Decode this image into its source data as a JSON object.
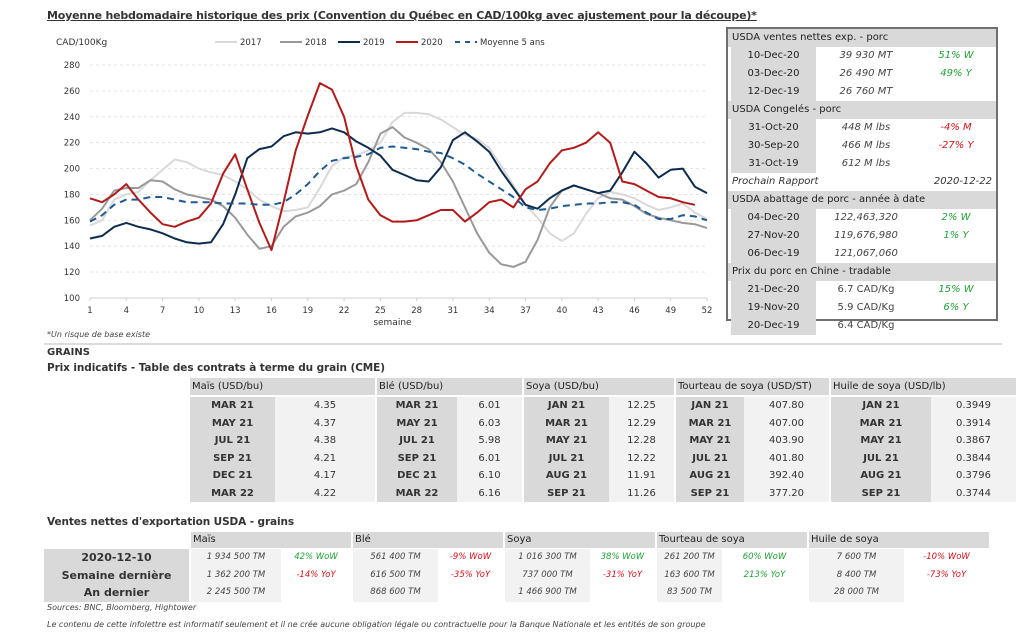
{
  "title": "Moyenne hebdomadaire historique des prix (Convention du Québec en CAD/100kg avec ajustement pour la découpe)*",
  "footnote": "*Un risque de base existe",
  "chart_data": {
    "type": "line",
    "title": "Moyenne hebdomadaire historique des prix (Convention du Québec en CAD/100kg avec ajustement pour la découpe)*",
    "ylabel": "CAD/100Kg",
    "xlabel": "semaine",
    "ylim": [
      100,
      280
    ],
    "yticks": [
      100,
      120,
      140,
      160,
      180,
      200,
      220,
      240,
      260,
      280
    ],
    "xlim": [
      1,
      52
    ],
    "xticks": [
      1,
      4,
      7,
      10,
      13,
      16,
      19,
      22,
      25,
      28,
      31,
      34,
      37,
      40,
      43,
      46,
      49,
      52
    ],
    "grid": true,
    "legend_position": "top",
    "x": [
      1,
      2,
      3,
      4,
      5,
      6,
      7,
      8,
      9,
      10,
      11,
      12,
      13,
      14,
      15,
      16,
      17,
      18,
      19,
      20,
      21,
      22,
      23,
      24,
      25,
      26,
      27,
      28,
      29,
      30,
      31,
      32,
      33,
      34,
      35,
      36,
      37,
      38,
      39,
      40,
      41,
      42,
      43,
      44,
      45,
      46,
      47,
      48,
      49,
      50,
      51,
      52
    ],
    "series": [
      {
        "name": "2017",
        "color": "#d9d9d9",
        "style": "solid",
        "values": [
          156,
          160,
          176,
          180,
          182,
          191,
          199,
          207,
          205,
          200,
          197,
          195,
          190,
          184,
          176,
          171,
          167,
          168,
          170,
          185,
          202,
          209,
          210,
          214,
          220,
          236,
          243,
          243,
          242,
          238,
          232,
          226,
          223,
          216,
          202,
          187,
          172,
          162,
          150,
          144,
          150,
          165,
          177,
          182,
          180,
          177,
          172,
          168,
          170,
          173,
          166,
          161
        ]
      },
      {
        "name": "2018",
        "color": "#999999",
        "style": "solid",
        "values": [
          160,
          169,
          183,
          185,
          185,
          191,
          190,
          184,
          180,
          178,
          176,
          171,
          162,
          149,
          138,
          140,
          155,
          163,
          166,
          171,
          180,
          183,
          188,
          205,
          227,
          232,
          224,
          220,
          215,
          205,
          190,
          170,
          150,
          135,
          126,
          124,
          128,
          145,
          170,
          183,
          187,
          184,
          181,
          177,
          176,
          171,
          165,
          162,
          160,
          158,
          157,
          154
        ]
      },
      {
        "name": "2019",
        "color": "#0d2c4e",
        "style": "solid",
        "values": [
          146,
          148,
          155,
          158,
          155,
          153,
          150,
          146,
          143,
          142,
          143,
          157,
          180,
          208,
          215,
          217,
          225,
          228,
          227,
          228,
          231,
          228,
          221,
          216,
          210,
          199,
          195,
          191,
          190,
          201,
          222,
          228,
          221,
          213,
          198,
          185,
          172,
          169,
          177,
          183,
          187,
          184,
          181,
          183,
          197,
          213,
          204,
          193,
          199,
          200,
          186,
          181
        ]
      },
      {
        "name": "2020",
        "color": "#b31b1b",
        "style": "solid",
        "values": [
          177,
          174,
          180,
          188,
          176,
          166,
          157,
          155,
          159,
          162,
          173,
          196,
          211,
          184,
          158,
          137,
          174,
          214,
          241,
          266,
          261,
          240,
          202,
          176,
          164,
          159,
          159,
          160,
          164,
          168,
          168,
          159,
          166,
          174,
          176,
          170,
          184,
          190,
          204,
          214,
          216,
          220,
          228,
          220,
          190,
          188,
          183,
          178,
          177,
          174,
          172,
          null
        ]
      },
      {
        "name": "Moyenne 5 ans",
        "color": "#1f5b92",
        "style": "dashed",
        "values": [
          159,
          164,
          172,
          176,
          176,
          178,
          178,
          176,
          174,
          174,
          174,
          173,
          173,
          173,
          172,
          172,
          174,
          180,
          188,
          198,
          206,
          208,
          209,
          211,
          216,
          217,
          216,
          215,
          213,
          212,
          208,
          203,
          196,
          190,
          184,
          178,
          170,
          168,
          169,
          171,
          172,
          173,
          173,
          174,
          174,
          172,
          166,
          161,
          161,
          164,
          163,
          160
        ]
      }
    ]
  },
  "legend": [
    "2017",
    "2018",
    "2019",
    "2020",
    "Moyenne 5 ans"
  ],
  "sidebox": {
    "sections": [
      {
        "header": "USDA ventes nettes exp. - porc",
        "rows": [
          {
            "date": "10-Dec-20",
            "value": "39 930  MT",
            "change": "51% W",
            "tone": "pos"
          },
          {
            "date": "03-Dec-20",
            "value": "26 490  MT",
            "change": "49% Y",
            "tone": "pos"
          },
          {
            "date": "12-Dec-19",
            "value": "26 760  MT",
            "change": "",
            "tone": ""
          }
        ]
      },
      {
        "header": "USDA Congelés - porc",
        "rows": [
          {
            "date": "31-Oct-20",
            "value": "448 M lbs",
            "change": "-4% M",
            "tone": "neg"
          },
          {
            "date": "30-Sep-20",
            "value": "466 M lbs",
            "change": "-27% Y",
            "tone": "neg"
          },
          {
            "date": "31-Oct-19",
            "value": "612 M lbs",
            "change": "",
            "tone": ""
          }
        ],
        "next_report_label": "Prochain Rapport",
        "next_report_date": "2020-12-22"
      },
      {
        "header": "USDA abattage de porc - année à date",
        "rows": [
          {
            "date": "04-Dec-20",
            "value": "122,463,320",
            "change": "2% W",
            "tone": "pos"
          },
          {
            "date": "27-Nov-20",
            "value": "119,676,980",
            "change": "1% Y",
            "tone": "pos"
          },
          {
            "date": "06-Dec-19",
            "value": "121,067,060",
            "change": "",
            "tone": ""
          }
        ]
      },
      {
        "header": "Prix du porc en Chine - tradable",
        "rows": [
          {
            "date": "21-Dec-20",
            "value": "6.7 CAD/Kg",
            "change": "15% W",
            "tone": "pos"
          },
          {
            "date": "19-Nov-20",
            "value": "5.9 CAD/Kg",
            "change": "6% Y",
            "tone": "pos"
          },
          {
            "date": "20-Dec-19",
            "value": "6.4 CAD/Kg",
            "change": "",
            "tone": ""
          }
        ]
      }
    ]
  },
  "grains": {
    "heading": "GRAINS",
    "futures_title": "Prix indicatifs - Table des contrats à terme du grain (CME)",
    "futures": [
      {
        "header": "Maïs (USD/bu)",
        "rows": [
          [
            "MAR 21",
            "4.35"
          ],
          [
            "MAY 21",
            "4.37"
          ],
          [
            "JUL 21",
            "4.38"
          ],
          [
            "SEP 21",
            "4.21"
          ],
          [
            "DEC 21",
            "4.17"
          ],
          [
            "MAR 22",
            "4.22"
          ]
        ]
      },
      {
        "header": "Blé (USD/bu)",
        "rows": [
          [
            "MAR 21",
            "6.01"
          ],
          [
            "MAY 21",
            "6.03"
          ],
          [
            "JUL 21",
            "5.98"
          ],
          [
            "SEP 21",
            "6.01"
          ],
          [
            "DEC 21",
            "6.10"
          ],
          [
            "MAR 22",
            "6.16"
          ]
        ]
      },
      {
        "header": "Soya (USD/bu)",
        "rows": [
          [
            "JAN 21",
            "12.25"
          ],
          [
            "MAR 21",
            "12.29"
          ],
          [
            "MAY 21",
            "12.28"
          ],
          [
            "JUL 21",
            "12.22"
          ],
          [
            "AUG 21",
            "11.91"
          ],
          [
            "SEP 21",
            "11.26"
          ]
        ]
      },
      {
        "header": "Tourteau de soya (USD/ST)",
        "rows": [
          [
            "JAN 21",
            "407.80"
          ],
          [
            "MAR 21",
            "407.00"
          ],
          [
            "MAY 21",
            "403.90"
          ],
          [
            "JUL 21",
            "401.80"
          ],
          [
            "AUG 21",
            "392.40"
          ],
          [
            "SEP 21",
            "377.20"
          ]
        ]
      },
      {
        "header": "Huile de soya (USD/lb)",
        "rows": [
          [
            "JAN 21",
            "0.3949"
          ],
          [
            "MAR 21",
            "0.3914"
          ],
          [
            "MAY 21",
            "0.3867"
          ],
          [
            "JUL 21",
            "0.3844"
          ],
          [
            "AUG 21",
            "0.3796"
          ],
          [
            "SEP 21",
            "0.3744"
          ]
        ]
      }
    ],
    "exports_title": "Ventes nettes d'exportation USDA - grains",
    "export_row_labels": [
      "2020-12-10",
      "Semaine dernière",
      "An dernier"
    ],
    "exports": [
      {
        "header": "Maïs",
        "rows": [
          [
            "1 934 500 TM",
            "42% WoW",
            "pos"
          ],
          [
            "1 362 200 TM",
            "-14% YoY",
            "neg"
          ],
          [
            "2 245 500 TM",
            "",
            ""
          ]
        ]
      },
      {
        "header": "Blé",
        "rows": [
          [
            "561 400 TM",
            "-9% WoW",
            "neg"
          ],
          [
            "616 500 TM",
            "-35% YoY",
            "neg"
          ],
          [
            "868 600 TM",
            "",
            ""
          ]
        ]
      },
      {
        "header": "Soya",
        "rows": [
          [
            "1 016 300 TM",
            "38% WoW",
            "pos"
          ],
          [
            "737 000 TM",
            "-31% YoY",
            "neg"
          ],
          [
            "1 466 900 TM",
            "",
            ""
          ]
        ]
      },
      {
        "header": "Tourteau de soya",
        "rows": [
          [
            "261 200 TM",
            "60% WoW",
            "pos"
          ],
          [
            "163 600 TM",
            "213% YoY",
            "pos"
          ],
          [
            "83 500 TM",
            "",
            ""
          ]
        ]
      },
      {
        "header": "Huile de soya",
        "rows": [
          [
            "7 600 TM",
            "-10% WoW",
            "neg"
          ],
          [
            "8 400 TM",
            "-73% YoY",
            "neg"
          ],
          [
            "28 000 TM",
            "",
            ""
          ]
        ]
      }
    ]
  },
  "sources": "Sources: BNC, Bloomberg, Hightower",
  "disclaimer": "Le contenu de cette infolettre est informatif seulement et il ne crée aucune obligation légale ou contractuelle pour la Banque Nationale et les entités de son groupe"
}
